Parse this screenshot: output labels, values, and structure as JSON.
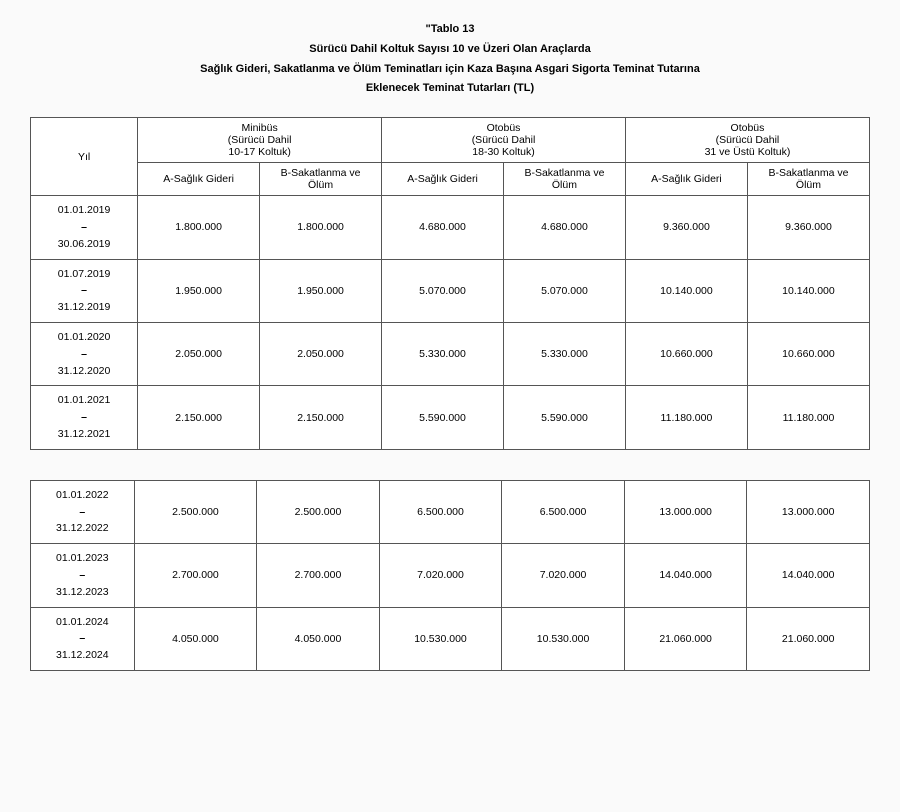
{
  "header": {
    "line1": "\"Tablo 13",
    "line2": "Sürücü Dahil Koltuk Sayısı 10 ve Üzeri Olan Araçlarda",
    "line3": "Sağlık Gideri, Sakatlanma ve Ölüm Teminatları için Kaza Başına Asgari Sigorta Teminat Tutarına",
    "line4": "Eklenecek Teminat Tutarları (TL)"
  },
  "columns": {
    "yil": "Yıl",
    "group1_name": "Minibüs",
    "group1_sub": "(Sürücü Dahil",
    "group1_sub2": "10-17 Koltuk)",
    "group2_name": "Otobüs",
    "group2_sub": "(Sürücü Dahil",
    "group2_sub2": "18-30 Koltuk)",
    "group3_name": "Otobüs",
    "group3_sub": "(Sürücü Dahil",
    "group3_sub2": "31 ve Üstü Koltuk)",
    "colA": "A-Sağlık Gideri",
    "colB1": "B-Sakatlanma ve",
    "colB2": "Ölüm"
  },
  "rows1": [
    {
      "from": "01.01.2019",
      "to": "30.06.2019",
      "a1": "1.800.000",
      "b1": "1.800.000",
      "a2": "4.680.000",
      "b2": "4.680.000",
      "a3": "9.360.000",
      "b3": "9.360.000"
    },
    {
      "from": "01.07.2019",
      "to": "31.12.2019",
      "a1": "1.950.000",
      "b1": "1.950.000",
      "a2": "5.070.000",
      "b2": "5.070.000",
      "a3": "10.140.000",
      "b3": "10.140.000"
    },
    {
      "from": "01.01.2020",
      "to": "31.12.2020",
      "a1": "2.050.000",
      "b1": "2.050.000",
      "a2": "5.330.000",
      "b2": "5.330.000",
      "a3": "10.660.000",
      "b3": "10.660.000"
    },
    {
      "from": "01.01.2021",
      "to": "31.12.2021",
      "a1": "2.150.000",
      "b1": "2.150.000",
      "a2": "5.590.000",
      "b2": "5.590.000",
      "a3": "11.180.000",
      "b3": "11.180.000"
    }
  ],
  "rows2": [
    {
      "from": "01.01.2022",
      "to": "31.12.2022",
      "a1": "2.500.000",
      "b1": "2.500.000",
      "a2": "6.500.000",
      "b2": "6.500.000",
      "a3": "13.000.000",
      "b3": "13.000.000"
    },
    {
      "from": "01.01.2023",
      "to": "31.12.2023",
      "a1": "2.700.000",
      "b1": "2.700.000",
      "a2": "7.020.000",
      "b2": "7.020.000",
      "a3": "14.040.000",
      "b3": "14.040.000"
    },
    {
      "from": "01.01.2024",
      "to": "31.12.2024",
      "a1": "4.050.000",
      "b1": "4.050.000",
      "a2": "10.530.000",
      "b2": "10.530.000",
      "a3": "21.060.000",
      "b3": "21.060.000"
    }
  ]
}
